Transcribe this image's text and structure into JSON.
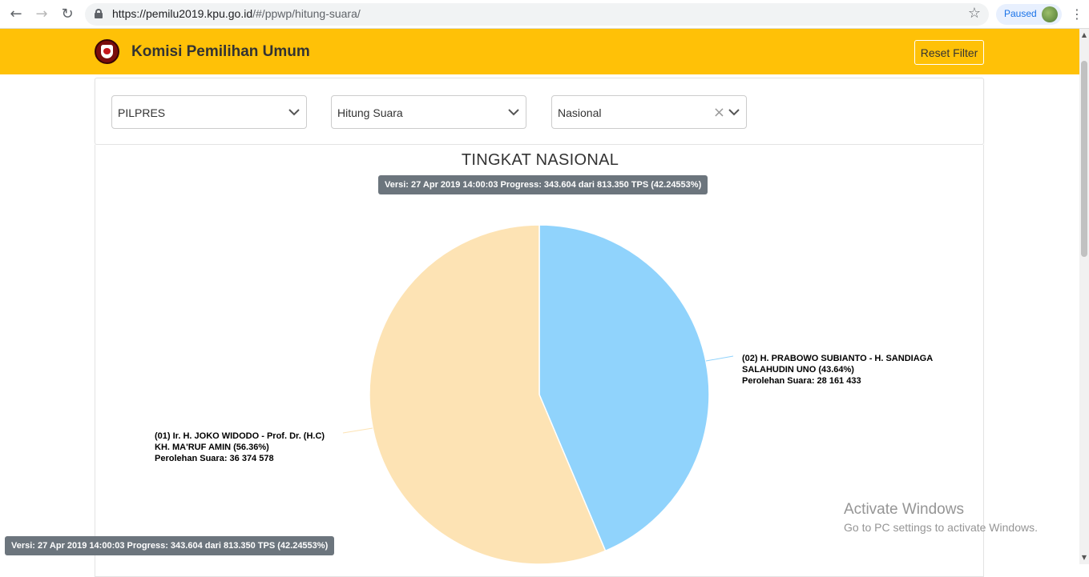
{
  "browser": {
    "url_host": "https://pemilu2019.kpu.go.id",
    "url_path": "/#/ppwp/hitung-suara/",
    "paused_label": "Paused"
  },
  "header": {
    "title": "Komisi Pemilihan Umum",
    "reset_label": "Reset Filter",
    "color": "#ffc107"
  },
  "filters": {
    "election": "PILPRES",
    "mode": "Hitung Suara",
    "region": "Nasional"
  },
  "main": {
    "title": "TINGKAT NASIONAL",
    "version": "Versi: 27 Apr 2019 14:00:03 Progress: 343.604 dari 813.350 TPS (42.24553%)"
  },
  "chart_data": {
    "type": "pie",
    "slices": [
      {
        "label_line1": "(02) H. PRABOWO SUBIANTO - H. SANDIAGA",
        "label_line2": "SALAHUDIN UNO (43.64%)",
        "label_line3": "Perolehan Suara: 28 161 433",
        "value": 28161433,
        "percent": 43.64,
        "color": "#90d3fc"
      },
      {
        "label_line1": "(01) Ir. H. JOKO WIDODO - Prof. Dr. (H.C)",
        "label_line2": "KH. MA'RUF AMIN (56.36%)",
        "label_line3": "Perolehan Suara: 36 374 578",
        "value": 36374578,
        "percent": 56.36,
        "color": "#fde3b4"
      }
    ]
  },
  "footer": {
    "version": "Versi: 27 Apr 2019 14:00:03 Progress: 343.604 dari 813.350 TPS (42.24553%)"
  },
  "watermark": {
    "line1": "Activate Windows",
    "line2": "Go to PC settings to activate Windows."
  }
}
